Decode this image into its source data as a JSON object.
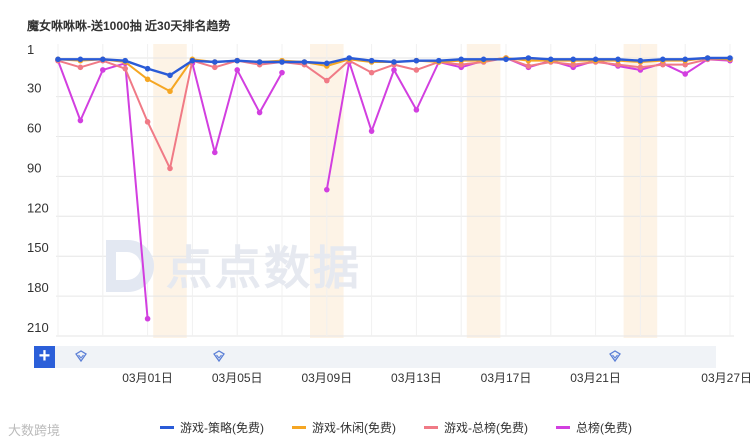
{
  "title": "魔女咻咻咻-送1000抽 近30天排名趋势",
  "watermark": "点点数据",
  "corner_logo": "大数跨境",
  "zoom_button_label": "+",
  "colors": {
    "series": [
      "#2a5bd7",
      "#f5a623",
      "#f07a86",
      "#d23fe0"
    ],
    "band": "#fdf3e6",
    "grid": "#e6e6e6"
  },
  "chart_data": {
    "type": "line",
    "title": "魔女咻咻咻-送1000抽 近30天排名趋势",
    "y_inverted": true,
    "ylim": [
      1,
      210
    ],
    "yticks": [
      1,
      30,
      60,
      90,
      120,
      150,
      180,
      210
    ],
    "x": [
      "02月26日",
      "02月27日",
      "02月28日",
      "02月29日",
      "03月01日",
      "03月02日",
      "03月03日",
      "03月04日",
      "03月05日",
      "03月06日",
      "03月07日",
      "03月08日",
      "03月09日",
      "03月10日",
      "03月11日",
      "03月12日",
      "03月13日",
      "03月14日",
      "03月15日",
      "03月16日",
      "03月17日",
      "03月18日",
      "03月19日",
      "03月20日",
      "03月21日",
      "03月22日",
      "03月23日",
      "03月24日",
      "03月25日",
      "03月26日",
      "03月27日"
    ],
    "xticks": [
      "03月01日",
      "03月05日",
      "03月09日",
      "03月13日",
      "03月17日",
      "03月21日",
      "03月27日"
    ],
    "highlight_bands": [
      "03月02日",
      "03月09日",
      "03月16日",
      "03月23日"
    ],
    "series": [
      {
        "name": "游戏-策略(免费)",
        "values": [
          2,
          2,
          2,
          3,
          9,
          14,
          3,
          4,
          3,
          4,
          4,
          4,
          5,
          1,
          3,
          4,
          3,
          3,
          2,
          2,
          2,
          1,
          2,
          2,
          2,
          2,
          3,
          2,
          2,
          1,
          1
        ]
      },
      {
        "name": "游戏-休闲(免费)",
        "values": [
          2,
          3,
          2,
          4,
          17,
          26,
          2,
          4,
          3,
          4,
          3,
          4,
          7,
          2,
          4,
          4,
          3,
          4,
          3,
          3,
          1,
          3,
          3,
          3,
          3,
          3,
          4,
          3,
          3,
          1,
          2
        ]
      },
      {
        "name": "游戏-总榜(免费)",
        "values": [
          3,
          8,
          3,
          9,
          49,
          84,
          3,
          8,
          3,
          6,
          4,
          6,
          18,
          3,
          12,
          6,
          10,
          4,
          6,
          4,
          1,
          7,
          4,
          6,
          4,
          6,
          8,
          6,
          6,
          2,
          2
        ]
      },
      {
        "name": "总榜(免费)",
        "values": [
          3,
          48,
          10,
          5,
          197,
          null,
          5,
          72,
          10,
          42,
          12,
          null,
          100,
          4,
          56,
          10,
          40,
          4,
          8,
          3,
          1,
          8,
          3,
          8,
          3,
          7,
          10,
          5,
          13,
          2,
          3
        ]
      }
    ]
  }
}
